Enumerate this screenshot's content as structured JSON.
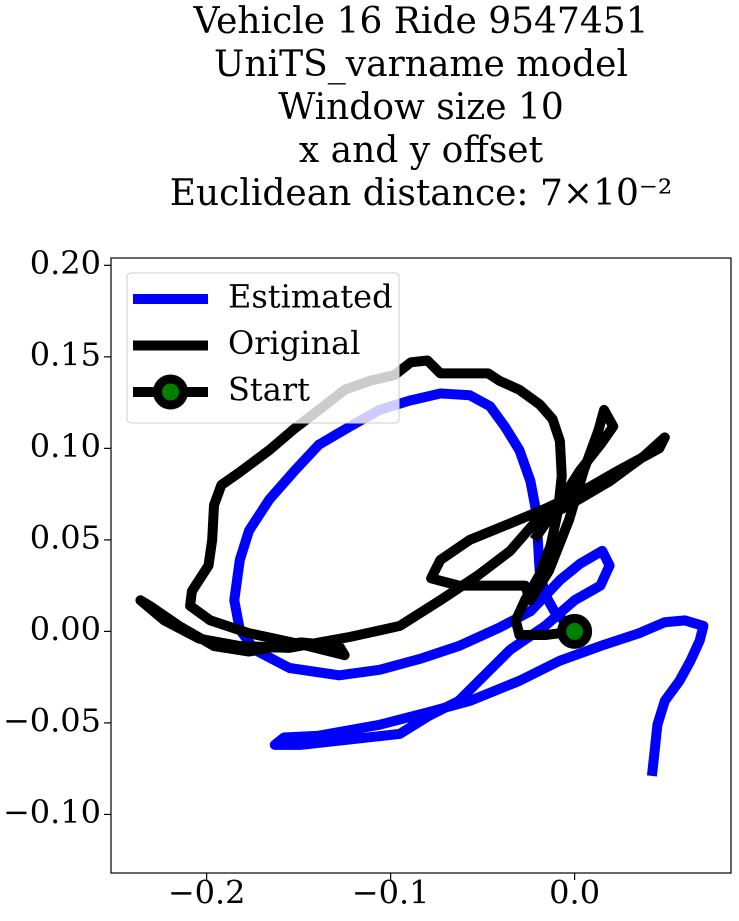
{
  "chart_data": {
    "type": "line",
    "title": [
      "Vehicle 16 Ride 9547451",
      "UniTS_varname model",
      "Window size 10",
      "x and y offset",
      "Euclidean distance: 7×10⁻²"
    ],
    "xlim": [
      -0.252,
      0.085
    ],
    "ylim": [
      -0.132,
      0.204
    ],
    "xticks": [
      {
        "value": -0.2,
        "label": "−0.2"
      },
      {
        "value": -0.1,
        "label": "−0.1"
      },
      {
        "value": 0.0,
        "label": "0.0"
      }
    ],
    "yticks": [
      {
        "value": 0.2,
        "label": "0.20"
      },
      {
        "value": 0.15,
        "label": "0.15"
      },
      {
        "value": 0.1,
        "label": "0.10"
      },
      {
        "value": 0.05,
        "label": "0.05"
      },
      {
        "value": 0.0,
        "label": "0.00"
      },
      {
        "value": -0.05,
        "label": "−0.05"
      },
      {
        "value": -0.1,
        "label": "−0.10"
      }
    ],
    "legend": "upper left",
    "series": [
      {
        "name": "Estimated",
        "color": "#0000ff",
        "x": [
          0,
          -0.011,
          -0.016,
          -0.019,
          -0.02,
          -0.021,
          -0.024,
          -0.03,
          -0.038,
          -0.046,
          -0.057,
          -0.073,
          -0.09,
          -0.106,
          -0.122,
          -0.139,
          -0.152,
          -0.166,
          -0.177,
          -0.182,
          -0.185,
          -0.182,
          -0.174,
          -0.155,
          -0.128,
          -0.106,
          -0.084,
          -0.063,
          -0.041,
          -0.024,
          -0.008,
          0.003,
          0.015,
          0.019,
          0.014,
          0.0,
          -0.016,
          -0.035,
          -0.052,
          -0.063,
          -0.079,
          -0.095,
          -0.122,
          -0.149,
          -0.163,
          -0.158,
          -0.139,
          -0.106,
          -0.079,
          -0.057,
          -0.03,
          -0.008,
          0.014,
          0.035,
          0.049,
          0.06,
          0.07,
          0.068,
          0.063,
          0.057,
          0.049,
          0.045,
          0.043,
          0.042
        ],
        "values": [
          0,
          0.011,
          0.02,
          0.033,
          0.05,
          0.066,
          0.082,
          0.099,
          0.112,
          0.123,
          0.129,
          0.13,
          0.126,
          0.121,
          0.112,
          0.102,
          0.088,
          0.072,
          0.055,
          0.039,
          0.017,
          0.001,
          -0.01,
          -0.02,
          -0.024,
          -0.021,
          -0.015,
          -0.008,
          0.002,
          0.011,
          0.028,
          0.037,
          0.044,
          0.036,
          0.025,
          0.017,
          0.003,
          -0.01,
          -0.027,
          -0.038,
          -0.046,
          -0.056,
          -0.059,
          -0.062,
          -0.062,
          -0.058,
          -0.057,
          -0.051,
          -0.044,
          -0.038,
          -0.027,
          -0.016,
          -0.008,
          -0.001,
          0.005,
          0.006,
          0.003,
          -0.005,
          -0.016,
          -0.027,
          -0.038,
          -0.051,
          -0.07,
          -0.079
        ]
      },
      {
        "name": "Original",
        "color": "#000000",
        "x": [
          0,
          -0.016,
          -0.03,
          -0.032,
          -0.027,
          -0.019,
          -0.013,
          -0.009,
          -0.007,
          -0.008,
          -0.012,
          -0.019,
          -0.03,
          -0.041,
          -0.047,
          -0.073,
          -0.08,
          -0.089,
          -0.098,
          -0.111,
          -0.125,
          -0.139,
          -0.152,
          -0.166,
          -0.182,
          -0.192,
          -0.196,
          -0.197,
          -0.199,
          -0.208,
          -0.209,
          -0.198,
          -0.177,
          -0.149,
          -0.125,
          -0.128,
          -0.149,
          -0.177,
          -0.196,
          -0.215,
          -0.231,
          -0.236,
          -0.223,
          -0.204,
          -0.182,
          -0.155,
          -0.122,
          -0.095,
          -0.073,
          -0.052,
          -0.035,
          -0.022,
          -0.003,
          0.019,
          0.038,
          0.049,
          0.046,
          0.024,
          0.003,
          -0.016,
          -0.035,
          -0.057,
          -0.073,
          -0.078,
          -0.063,
          -0.027,
          -0.024,
          -0.014,
          -0.003,
          0.005,
          0.013,
          0.016,
          0.021,
          0.014,
          0.003,
          -0.011,
          -0.022
        ],
        "values": [
          0,
          -0.002,
          -0.002,
          0.006,
          0.017,
          0.031,
          0.047,
          0.066,
          0.085,
          0.104,
          0.116,
          0.124,
          0.132,
          0.137,
          0.141,
          0.141,
          0.148,
          0.147,
          0.14,
          0.137,
          0.132,
          0.121,
          0.111,
          0.099,
          0.087,
          0.08,
          0.069,
          0.05,
          0.036,
          0.022,
          0.014,
          0.006,
          -0.001,
          -0.007,
          -0.013,
          -0.008,
          -0.006,
          -0.011,
          -0.008,
          0.003,
          0.014,
          0.017,
          0.006,
          -0.004,
          -0.008,
          -0.009,
          -0.003,
          0.003,
          0.017,
          0.031,
          0.044,
          0.059,
          0.069,
          0.082,
          0.096,
          0.106,
          0.1,
          0.088,
          0.076,
          0.067,
          0.059,
          0.05,
          0.039,
          0.029,
          0.025,
          0.025,
          0.017,
          0.033,
          0.061,
          0.088,
          0.11,
          0.121,
          0.112,
          0.102,
          0.088,
          0.066,
          0.05
        ]
      },
      {
        "name": "Start",
        "color": "#000000",
        "marker_color": "#008000",
        "x": [
          0
        ],
        "values": [
          0
        ]
      }
    ]
  }
}
